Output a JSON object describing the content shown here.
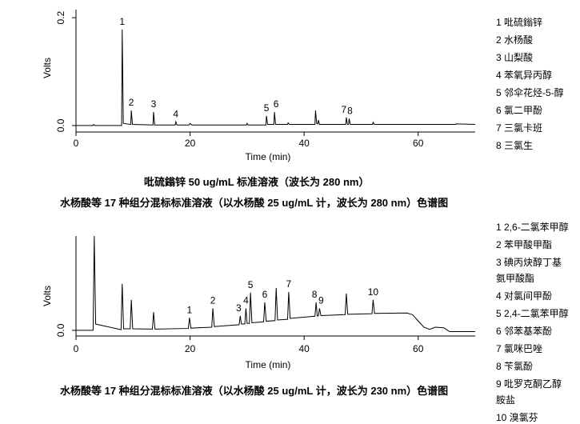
{
  "chart_data": [
    {
      "type": "line",
      "title": "水杨酸等 17 种组分混标标准溶液（以水杨酸 25 ug/mL 计，波长为 280 nm）色谱图",
      "subtitle": "吡硫鎓锌 50 ug/mL 标准溶液（波长为 280 nm）",
      "xlabel": "Time (min)",
      "ylabel": "Volts",
      "xlim": [
        0,
        70
      ],
      "xticks": [
        0,
        20,
        40,
        60
      ],
      "ylim": [
        -0.012,
        0.215
      ],
      "yticks": [
        {
          "value": 0,
          "label": "0.0"
        },
        0.2
      ],
      "color": "#000000",
      "x": [
        0,
        3,
        3.1,
        3.3,
        8.0,
        8.1,
        8.3,
        9.6,
        9.7,
        9.9,
        13.5,
        13.6,
        13.8,
        17.4,
        17.5,
        17.7,
        19.8,
        20,
        20.3,
        29.9,
        30,
        30.2,
        33.3,
        33.4,
        33.6,
        34.7,
        34.8,
        35.0,
        37.1,
        37.2,
        37.4,
        41.9,
        42,
        42.2,
        42.4,
        42.5,
        42.7,
        47.3,
        47.4,
        47.6,
        47.8,
        47.9,
        48.1,
        52,
        52.1,
        52.3,
        66.5,
        66.6,
        70
      ],
      "values": [
        0,
        0,
        0.002,
        0,
        0,
        0.178,
        0.004,
        0.002,
        0.028,
        0.002,
        0.001,
        0.025,
        0.001,
        0.001,
        0.007,
        0.001,
        0.001,
        0.004,
        0.001,
        0.001,
        0.004,
        0.001,
        0.001,
        0.018,
        0.002,
        0.002,
        0.025,
        0.002,
        0.002,
        0.005,
        0.002,
        0.002,
        0.028,
        0.004,
        0.003,
        0.01,
        0.002,
        0.002,
        0.015,
        0.002,
        0.002,
        0.013,
        0.002,
        0.002,
        0.006,
        0.002,
        0.002,
        0.003,
        0.002
      ],
      "annotations": [
        "1",
        "2",
        "3",
        "4",
        "5",
        "6",
        "7",
        "8"
      ],
      "legend": [
        "1 吡硫鎓锌",
        "2 水杨酸",
        "3 山梨酸",
        "4 苯氧异丙醇",
        "5 邻伞花烃-5-醇",
        "6 氯二甲酚",
        "7 三氯卡班",
        "8 三氯生"
      ]
    },
    {
      "type": "line",
      "title": "水杨酸等 17 种组分混标标准溶液（以水杨酸 25 ug/mL 计，波长为 230 nm）色谱图",
      "xlabel": "Time (min)",
      "ylabel": "Volts",
      "xlim": [
        0,
        70
      ],
      "xticks": [
        0,
        20,
        40,
        60
      ],
      "ylim": [
        -0.018,
        0.3
      ],
      "yticks": [
        {
          "value": 0,
          "label": "0.0"
        }
      ],
      "color": "#000000",
      "x": [
        0,
        3.0,
        3.2,
        3.45,
        7.9,
        8.1,
        8.35,
        9.5,
        9.7,
        9.95,
        13.4,
        13.6,
        13.85,
        19.7,
        19.9,
        20.15,
        23.8,
        24,
        24.25,
        28.6,
        28.8,
        29.0,
        29.6,
        29.8,
        30.0,
        30.4,
        30.6,
        30.85,
        32.9,
        33.1,
        33.35,
        34.9,
        35.1,
        35.35,
        37.1,
        37.3,
        37.55,
        41.9,
        42.1,
        42.3,
        42.5,
        42.7,
        42.95,
        47.2,
        47.4,
        47.65,
        51.9,
        52.1,
        52.35,
        58,
        59,
        60,
        61,
        62,
        63,
        64.5,
        65.5,
        70
      ],
      "values": [
        0,
        0,
        0.3,
        0.02,
        0.002,
        0.148,
        0.005,
        0.005,
        0.097,
        0.005,
        0.004,
        0.058,
        0.004,
        0.006,
        0.04,
        0.007,
        0.01,
        0.07,
        0.012,
        0.018,
        0.046,
        0.02,
        0.02,
        0.07,
        0.022,
        0.022,
        0.12,
        0.024,
        0.027,
        0.089,
        0.029,
        0.031,
        0.135,
        0.033,
        0.035,
        0.122,
        0.038,
        0.045,
        0.089,
        0.046,
        0.046,
        0.07,
        0.047,
        0.05,
        0.117,
        0.051,
        0.053,
        0.097,
        0.054,
        0.055,
        0.05,
        0.03,
        0.01,
        0.003,
        0.01,
        0.008,
        -0.004,
        -0.004
      ],
      "annotations": [
        "1",
        "2",
        "3",
        "4",
        "5",
        "6",
        "7",
        "8",
        "9",
        "10"
      ],
      "legend": [
        "1 2,6-二氯苯甲醇",
        "2 苯甲酸甲酯",
        "3 碘丙炔醇丁基氨甲酸酯",
        "4 对氯间甲酚",
        "5 2,4-二氯苯甲醇",
        "6 邻苯基苯酚",
        "7 氯咪巴唑",
        "8 苄氯酚",
        "9 吡罗克酮乙醇胺盐",
        "10 溴氯芬"
      ]
    }
  ]
}
